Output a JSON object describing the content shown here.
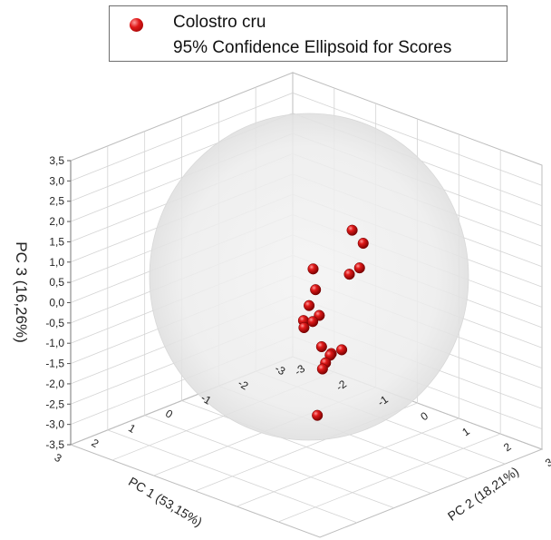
{
  "legend": {
    "series_label": "Colostro cru",
    "ellipsoid_label": "95% Confidence Ellipsoid for Scores"
  },
  "chart_data": {
    "type": "scatter",
    "dimensions": 3,
    "series": [
      {
        "name": "Colostro cru",
        "color": "#d01010",
        "points": [
          {
            "x": -2.0,
            "y": -0.5,
            "z": 0.0
          },
          {
            "x": -1.8,
            "y": -0.5,
            "z": 1.0
          },
          {
            "x": -1.5,
            "y": -0.3,
            "z": 0.1
          },
          {
            "x": -1.2,
            "y": 0.3,
            "z": 1.2
          },
          {
            "x": 1.5,
            "y": 1.5,
            "z": 2.0
          },
          {
            "x": 0.2,
            "y": 0.4,
            "z": 0.6
          },
          {
            "x": 0.5,
            "y": 0.6,
            "z": 0.0
          },
          {
            "x": 0.3,
            "y": 0.2,
            "z": -0.2
          },
          {
            "x": 0.4,
            "y": 0.3,
            "z": -0.3
          },
          {
            "x": -0.3,
            "y": -0.2,
            "z": -0.2
          },
          {
            "x": -0.8,
            "y": -0.4,
            "z": -0.7
          },
          {
            "x": -0.3,
            "y": 0.1,
            "z": -1.1
          },
          {
            "x": -0.1,
            "y": 0.3,
            "z": -1.5
          },
          {
            "x": -0.9,
            "y": -0.2,
            "z": -1.6
          },
          {
            "x": 1.5,
            "y": 1.8,
            "z": -0.2
          },
          {
            "x": 1.6,
            "y": 2.0,
            "z": 0.1
          },
          {
            "x": 1.4,
            "y": 2.1,
            "z": 0.2
          },
          {
            "x": 0.6,
            "y": 0.8,
            "z": -2.2
          }
        ]
      }
    ],
    "ellipsoid": {
      "label": "95% Confidence Ellipsoid for Scores",
      "center": [
        0,
        0,
        0
      ],
      "radii": [
        3,
        3,
        3.2
      ],
      "color": "#dcdcdc"
    },
    "x_axis": {
      "label": "PC 1 (53,15%)",
      "ticks": [
        "-3",
        "-2",
        "-1",
        "0",
        "1",
        "2",
        "3"
      ],
      "range": [
        -3,
        3
      ]
    },
    "y_axis": {
      "label": "PC 2 (18,21%)",
      "ticks": [
        "-3",
        "-2",
        "-1",
        "0",
        "1",
        "2",
        "3"
      ],
      "range": [
        -3,
        3
      ]
    },
    "z_axis": {
      "label": "PC 3 (16,26%)",
      "ticks": [
        "3,5",
        "3,0",
        "2,5",
        "2,0",
        "1,5",
        "1,0",
        "0,5",
        "0,0",
        "-0,5",
        "-1,0",
        "-1,5",
        "-2,0",
        "-2,5",
        "-3,0",
        "-3,5"
      ],
      "range": [
        -3.5,
        3.5
      ]
    },
    "grid": true
  }
}
